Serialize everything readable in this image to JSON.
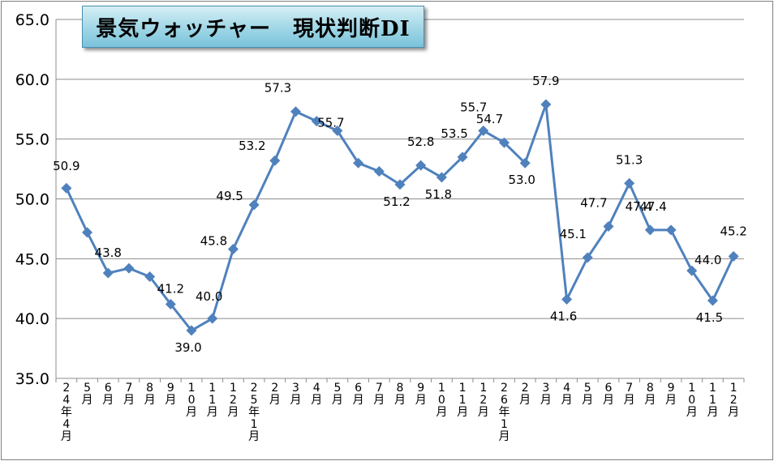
{
  "chart_data": {
    "type": "line",
    "title": "景気ウォッチャー　現状判断DI",
    "categories": [
      "24年4月",
      "5月",
      "6月",
      "7月",
      "8月",
      "9月",
      "10月",
      "11月",
      "12月",
      "25年1月",
      "2月",
      "3月",
      "4月",
      "5月",
      "6月",
      "7月",
      "8月",
      "9月",
      "10月",
      "11月",
      "12月",
      "26年1月",
      "2月",
      "3月",
      "4月",
      "5月",
      "6月",
      "7月",
      "8月",
      "9月",
      "10月",
      "11月",
      "12月"
    ],
    "values": [
      50.9,
      47.2,
      43.8,
      44.2,
      43.5,
      41.2,
      39.0,
      40.0,
      45.8,
      49.5,
      53.2,
      57.3,
      56.5,
      55.7,
      53.0,
      52.3,
      51.2,
      52.8,
      51.8,
      53.5,
      55.7,
      54.7,
      53.0,
      57.9,
      41.6,
      45.1,
      47.7,
      51.3,
      47.4,
      47.4,
      44.0,
      41.5,
      45.2
    ],
    "data_labels": [
      {
        "i": 0,
        "text": "50.9"
      },
      {
        "i": 2,
        "text": "43.8"
      },
      {
        "i": 5,
        "text": "41.2"
      },
      {
        "i": 6,
        "text": "39.0"
      },
      {
        "i": 7,
        "text": "40.0"
      },
      {
        "i": 8,
        "text": "45.8"
      },
      {
        "i": 9,
        "text": "49.5"
      },
      {
        "i": 10,
        "text": "53.2"
      },
      {
        "i": 11,
        "text": "57.3"
      },
      {
        "i": 13,
        "text": "55.7"
      },
      {
        "i": 16,
        "text": "51.2"
      },
      {
        "i": 17,
        "text": "52.8"
      },
      {
        "i": 18,
        "text": "51.8"
      },
      {
        "i": 19,
        "text": "53.5"
      },
      {
        "i": 20,
        "text": "55.7"
      },
      {
        "i": 21,
        "text": "54.7"
      },
      {
        "i": 22,
        "text": "53.0"
      },
      {
        "i": 23,
        "text": "57.9"
      },
      {
        "i": 24,
        "text": "41.6"
      },
      {
        "i": 25,
        "text": "45.1"
      },
      {
        "i": 26,
        "text": "47.7"
      },
      {
        "i": 27,
        "text": "51.3"
      },
      {
        "i": 28,
        "text": "47.4"
      },
      {
        "i": 29,
        "text": "47.4"
      },
      {
        "i": 30,
        "text": "44.0"
      },
      {
        "i": 31,
        "text": "41.5"
      },
      {
        "i": 32,
        "text": "45.2"
      }
    ],
    "ylim": [
      35.0,
      65.0
    ],
    "yticks": [
      "35.0",
      "40.0",
      "45.0",
      "50.0",
      "55.0",
      "60.0",
      "65.0"
    ],
    "grid": true,
    "line_color": "#4f81bd"
  }
}
